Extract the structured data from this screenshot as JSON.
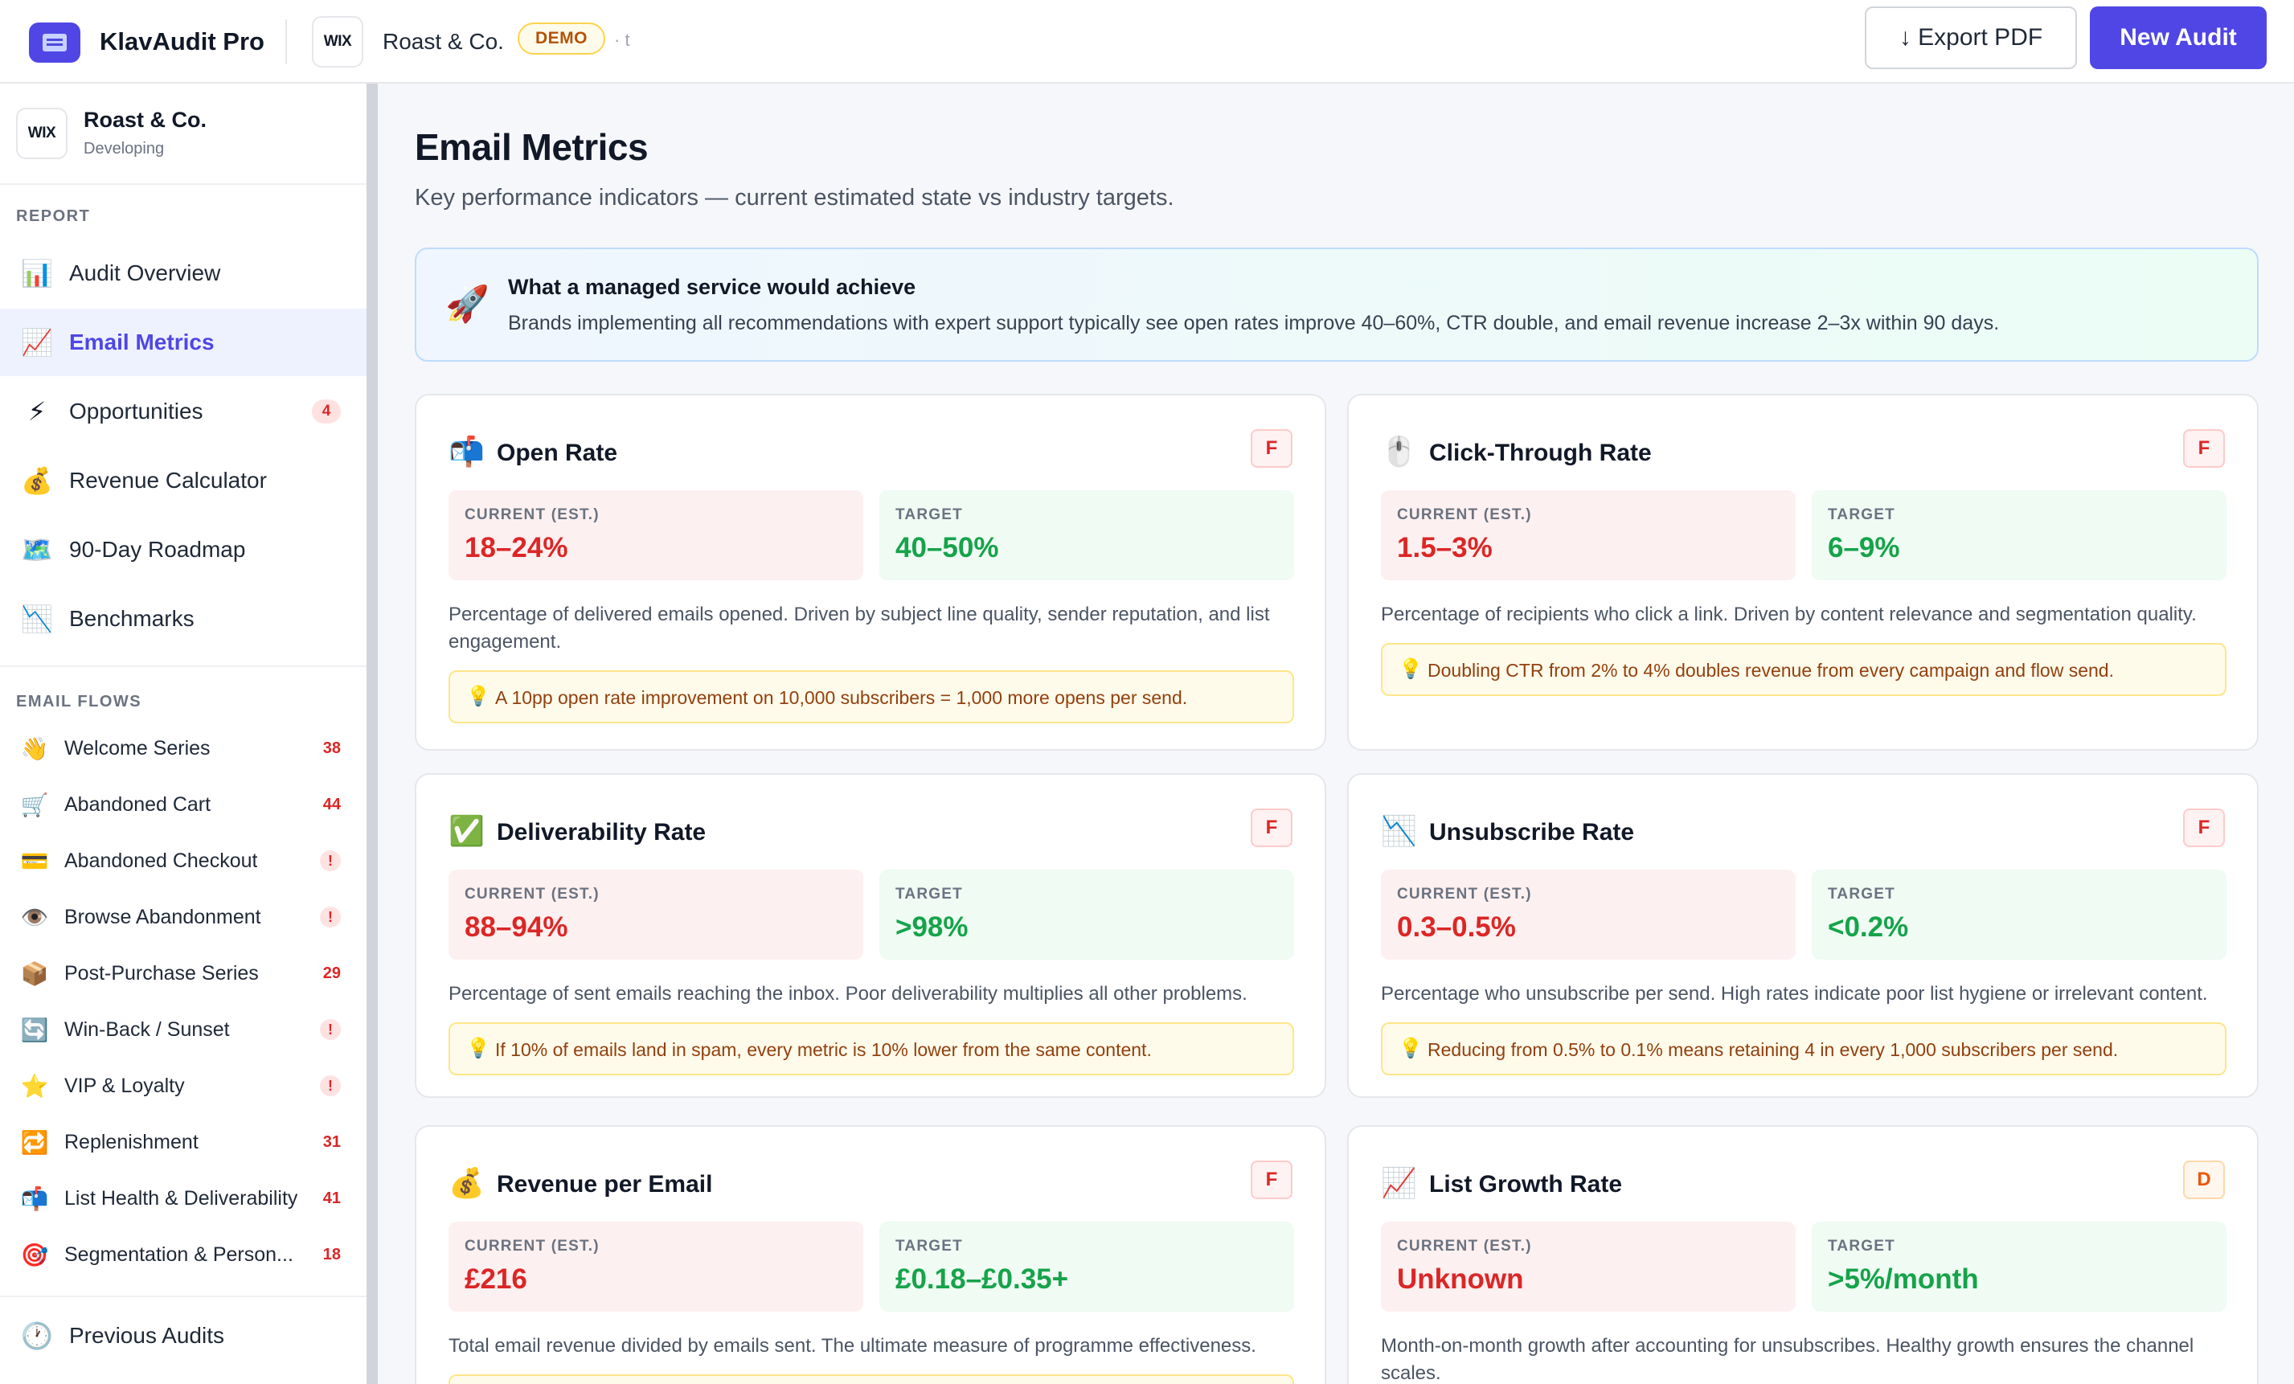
{
  "header": {
    "app_title": "KlavAudit Pro",
    "client_badge": "WIX",
    "client_name": "Roast & Co.",
    "demo_label": "DEMO",
    "suffix": "· t",
    "export_label": "↓ Export PDF",
    "new_audit_label": "New Audit"
  },
  "sidebar": {
    "client": {
      "badge": "WIX",
      "name": "Roast & Co.",
      "status": "Developing"
    },
    "report_label": "REPORT",
    "report_items": [
      {
        "icon": "📊",
        "label": "Audit Overview"
      },
      {
        "icon": "📈",
        "label": "Email Metrics"
      },
      {
        "icon": "⚡",
        "label": "Opportunities",
        "count": "4"
      },
      {
        "icon": "💰",
        "label": "Revenue Calculator"
      },
      {
        "icon": "🗺️",
        "label": "90-Day Roadmap"
      },
      {
        "icon": "📉",
        "label": "Benchmarks"
      }
    ],
    "flows_label": "EMAIL FLOWS",
    "flows": [
      {
        "icon": "👋",
        "label": "Welcome Series",
        "count": "38"
      },
      {
        "icon": "🛒",
        "label": "Abandoned Cart",
        "count": "44"
      },
      {
        "icon": "💳",
        "label": "Abandoned Checkout",
        "count": "!"
      },
      {
        "icon": "👁️",
        "label": "Browse Abandonment",
        "count": "!"
      },
      {
        "icon": "📦",
        "label": "Post-Purchase Series",
        "count": "29"
      },
      {
        "icon": "🔄",
        "label": "Win-Back / Sunset",
        "count": "!"
      },
      {
        "icon": "⭐",
        "label": "VIP & Loyalty",
        "count": "!"
      },
      {
        "icon": "🔁",
        "label": "Replenishment",
        "count": "31"
      },
      {
        "icon": "📬",
        "label": "List Health & Deliverability",
        "count": "41"
      },
      {
        "icon": "🎯",
        "label": "Segmentation & Person...",
        "count": "18"
      }
    ],
    "previous_audits": {
      "icon": "🕐",
      "label": "Previous Audits"
    }
  },
  "main": {
    "title": "Email Metrics",
    "subtitle": "Key performance indicators — current estimated state vs industry targets.",
    "banner": {
      "icon": "🚀",
      "title": "What a managed service would achieve",
      "text": "Brands implementing all recommendations with expert support typically see open rates improve 40–60%, CTR double, and email revenue increase 2–3x within 90 days."
    },
    "current_label": "CURRENT (EST.)",
    "target_label": "TARGET",
    "metrics": [
      {
        "icon": "📬",
        "title": "Open Rate",
        "grade": "F",
        "current": "18–24%",
        "target": "40–50%",
        "description": "Percentage of delivered emails opened. Driven by subject line quality, sender reputation, and list engagement.",
        "tip": "A 10pp open rate improvement on 10,000 subscribers = 1,000 more opens per send."
      },
      {
        "icon": "🖱️",
        "title": "Click-Through Rate",
        "grade": "F",
        "current": "1.5–3%",
        "target": "6–9%",
        "description": "Percentage of recipients who click a link. Driven by content relevance and segmentation quality.",
        "tip": "Doubling CTR from 2% to 4% doubles revenue from every campaign and flow send."
      },
      {
        "icon": "✅",
        "title": "Deliverability Rate",
        "grade": "F",
        "current": "88–94%",
        "target": ">98%",
        "description": "Percentage of sent emails reaching the inbox. Poor deliverability multiplies all other problems.",
        "tip": "If 10% of emails land in spam, every metric is 10% lower from the same content."
      },
      {
        "icon": "📉",
        "title": "Unsubscribe Rate",
        "grade": "F",
        "current": "0.3–0.5%",
        "target": "<0.2%",
        "description": "Percentage who unsubscribe per send. High rates indicate poor list hygiene or irrelevant content.",
        "tip": "Reducing from 0.5% to 0.1% means retaining 4 in every 1,000 subscribers per send."
      },
      {
        "icon": "💰",
        "title": "Revenue per Email",
        "grade": "F",
        "current": "£216",
        "target": "£0.18–£0.35+",
        "description": "Total email revenue divided by emails sent. The ultimate measure of programme effectiveness.",
        "tip": ""
      },
      {
        "icon": "📈",
        "title": "List Growth Rate",
        "grade": "D",
        "current": "Unknown",
        "target": ">5%/month",
        "description": "Month-on-month growth after accounting for unsubscribes. Healthy growth ensures the channel scales.",
        "tip": ""
      }
    ]
  }
}
